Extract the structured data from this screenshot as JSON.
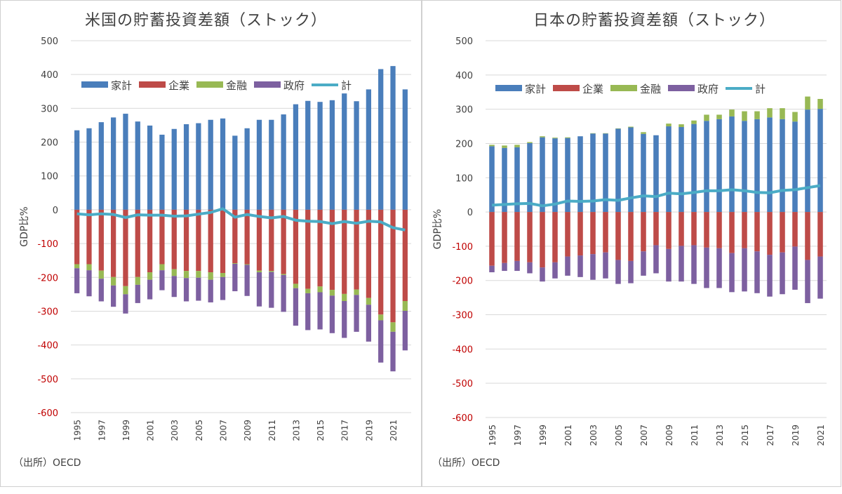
{
  "colors": {
    "household": "#4a7ebb",
    "corporate": "#be4b48",
    "financial": "#98b954",
    "government": "#7d60a0",
    "total": "#4bacc6",
    "negative_tick": "#c00000",
    "grid": "#d9d9d9"
  },
  "chart_data": [
    {
      "type": "bar",
      "stacked": true,
      "title": "米国の貯蓄投資差額（ストック）",
      "ylabel": "GDP比%",
      "xlabel": "",
      "ylim": [
        -600,
        500
      ],
      "yticks": [
        500,
        400,
        300,
        200,
        100,
        0,
        -100,
        -200,
        -300,
        -400,
        -500,
        -600
      ],
      "grid": true,
      "legend": "top-left",
      "categories": [
        1995,
        1996,
        1997,
        1998,
        1999,
        2000,
        2001,
        2002,
        2003,
        2004,
        2005,
        2006,
        2007,
        2008,
        2009,
        2010,
        2011,
        2012,
        2013,
        2014,
        2015,
        2016,
        2017,
        2018,
        2019,
        2020,
        2021,
        2022
      ],
      "xtick_labels": [
        "1995",
        "1997",
        "1999",
        "2001",
        "2003",
        "2005",
        "2007",
        "2009",
        "2011",
        "2013",
        "2015",
        "2017",
        "2019",
        "2021"
      ],
      "series": [
        {
          "name": "家計",
          "kind": "bar",
          "values": [
            235,
            241,
            259,
            273,
            284,
            261,
            249,
            222,
            239,
            253,
            256,
            266,
            270,
            219,
            241,
            266,
            266,
            282,
            312,
            322,
            319,
            324,
            344,
            321,
            356,
            416,
            425,
            356
          ]
        },
        {
          "name": "企業",
          "kind": "bar",
          "values": [
            -161,
            -161,
            -180,
            -199,
            -226,
            -199,
            -185,
            -161,
            -176,
            -181,
            -181,
            -185,
            -187,
            -158,
            -161,
            -180,
            -181,
            -190,
            -219,
            -234,
            -227,
            -237,
            -249,
            -236,
            -261,
            -310,
            -333,
            -270
          ]
        },
        {
          "name": "金融",
          "kind": "bar",
          "values": [
            -12,
            -18,
            -24,
            -25,
            -24,
            -23,
            -22,
            -18,
            -20,
            -21,
            -20,
            -22,
            -12,
            -2,
            -2,
            -5,
            -3,
            -3,
            -13,
            -13,
            -17,
            -17,
            -21,
            -16,
            -20,
            -17,
            -28,
            -29
          ]
        },
        {
          "name": "政府",
          "kind": "bar",
          "values": [
            -74,
            -77,
            -67,
            -63,
            -57,
            -54,
            -58,
            -59,
            -62,
            -69,
            -68,
            -67,
            -68,
            -81,
            -92,
            -101,
            -106,
            -109,
            -111,
            -109,
            -110,
            -111,
            -109,
            -109,
            -109,
            -125,
            -117,
            -117
          ]
        },
        {
          "name": "計",
          "kind": "line",
          "values": [
            -12,
            -15,
            -12,
            -14,
            -23,
            -15,
            -16,
            -16,
            -19,
            -18,
            -13,
            -8,
            3,
            -22,
            -14,
            -20,
            -24,
            -20,
            -31,
            -34,
            -35,
            -41,
            -35,
            -40,
            -34,
            -36,
            -53,
            -60
          ]
        }
      ],
      "source": "（出所）OECD"
    },
    {
      "type": "bar",
      "stacked": true,
      "title": "日本の貯蓄投資差額（ストック）",
      "ylabel": "GDP比%",
      "xlabel": "",
      "ylim": [
        -600,
        500
      ],
      "yticks": [
        500,
        400,
        300,
        200,
        100,
        0,
        -100,
        -200,
        -300,
        -400,
        -500,
        -600
      ],
      "grid": true,
      "legend": "top-left",
      "categories": [
        1995,
        1996,
        1997,
        1998,
        1999,
        2000,
        2001,
        2002,
        2003,
        2004,
        2005,
        2006,
        2007,
        2008,
        2009,
        2010,
        2011,
        2012,
        2013,
        2014,
        2015,
        2016,
        2017,
        2018,
        2019,
        2020,
        2021
      ],
      "xtick_labels": [
        "1995",
        "1997",
        "1999",
        "2001",
        "2003",
        "2005",
        "2007",
        "2009",
        "2011",
        "2013",
        "2015",
        "2017",
        "2019",
        "2021"
      ],
      "series": [
        {
          "name": "家計",
          "kind": "bar",
          "values": [
            192,
            187,
            189,
            201,
            218,
            215,
            216,
            221,
            229,
            229,
            243,
            247,
            228,
            224,
            250,
            248,
            257,
            266,
            271,
            279,
            266,
            271,
            276,
            271,
            264,
            299,
            301
          ]
        },
        {
          "name": "企業",
          "kind": "bar",
          "values": [
            -157,
            -149,
            -143,
            -147,
            -162,
            -147,
            -130,
            -127,
            -123,
            -118,
            -140,
            -143,
            -115,
            -97,
            -108,
            -99,
            -97,
            -104,
            -106,
            -120,
            -106,
            -115,
            -125,
            -118,
            -101,
            -140,
            -130
          ]
        },
        {
          "name": "金融",
          "kind": "bar",
          "values": [
            4,
            7,
            7,
            3,
            3,
            2,
            2,
            0,
            1,
            1,
            1,
            2,
            5,
            0,
            8,
            8,
            10,
            18,
            13,
            20,
            28,
            23,
            27,
            32,
            28,
            38,
            29
          ]
        },
        {
          "name": "政府",
          "kind": "bar",
          "values": [
            -19,
            -23,
            -29,
            -32,
            -41,
            -47,
            -56,
            -63,
            -75,
            -76,
            -70,
            -65,
            -71,
            -82,
            -95,
            -104,
            -113,
            -118,
            -116,
            -114,
            -126,
            -122,
            -122,
            -122,
            -126,
            -126,
            -123
          ]
        },
        {
          "name": "計",
          "kind": "line",
          "values": [
            20,
            22,
            24,
            25,
            18,
            23,
            32,
            31,
            32,
            36,
            34,
            41,
            47,
            45,
            55,
            53,
            57,
            62,
            62,
            65,
            62,
            57,
            56,
            63,
            65,
            71,
            77
          ]
        }
      ],
      "source": "（出所）OECD"
    }
  ]
}
